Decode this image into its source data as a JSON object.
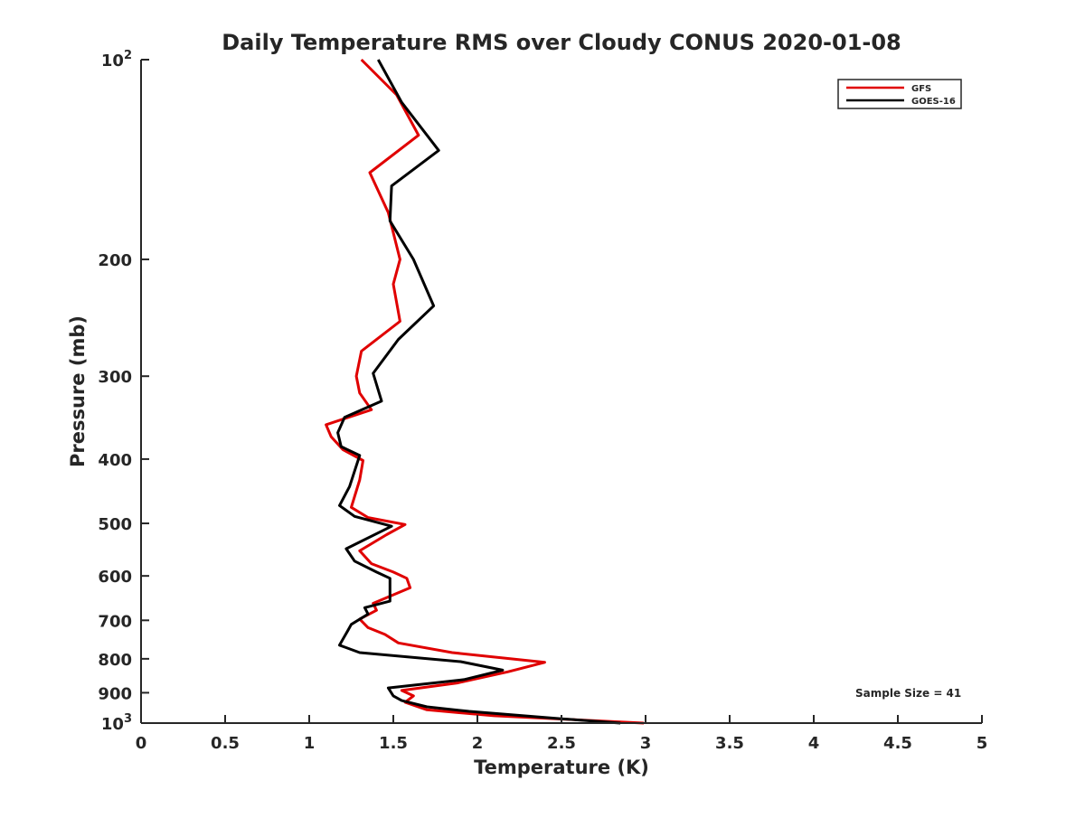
{
  "chart_data": {
    "type": "line",
    "title": "Daily Temperature RMS over Cloudy CONUS 2020-01-08",
    "xlabel": "Temperature (K)",
    "ylabel": "Pressure (mb)",
    "xlim": [
      0,
      5
    ],
    "ylim": [
      100,
      1000
    ],
    "y_scale": "log",
    "y_reversed": true,
    "grid": false,
    "legend_position": "top-right",
    "x_ticks": [
      {
        "value": 0,
        "label": "0"
      },
      {
        "value": 0.5,
        "label": "0.5"
      },
      {
        "value": 1,
        "label": "1"
      },
      {
        "value": 1.5,
        "label": "1.5"
      },
      {
        "value": 2,
        "label": "2"
      },
      {
        "value": 2.5,
        "label": "2.5"
      },
      {
        "value": 3,
        "label": "3"
      },
      {
        "value": 3.5,
        "label": "3.5"
      },
      {
        "value": 4,
        "label": "4"
      },
      {
        "value": 4.5,
        "label": "4.5"
      },
      {
        "value": 5,
        "label": "5"
      }
    ],
    "y_ticks": [
      {
        "value": 100,
        "base": "10",
        "exp": "2"
      },
      {
        "value": 200,
        "base": "200",
        "exp": ""
      },
      {
        "value": 300,
        "base": "300",
        "exp": ""
      },
      {
        "value": 400,
        "base": "400",
        "exp": ""
      },
      {
        "value": 500,
        "base": "500",
        "exp": ""
      },
      {
        "value": 600,
        "base": "600",
        "exp": ""
      },
      {
        "value": 700,
        "base": "700",
        "exp": ""
      },
      {
        "value": 800,
        "base": "800",
        "exp": ""
      },
      {
        "value": 900,
        "base": "900",
        "exp": ""
      },
      {
        "value": 1000,
        "base": "10",
        "exp": "3"
      }
    ],
    "series": [
      {
        "name": "GFS",
        "color": "#e00000",
        "points": [
          [
            1.31,
            100
          ],
          [
            1.52,
            113
          ],
          [
            1.65,
            130
          ],
          [
            1.36,
            148
          ],
          [
            1.47,
            170
          ],
          [
            1.54,
            200
          ],
          [
            1.5,
            218
          ],
          [
            1.54,
            248
          ],
          [
            1.31,
            275
          ],
          [
            1.28,
            300
          ],
          [
            1.3,
            318
          ],
          [
            1.37,
            337
          ],
          [
            1.1,
            355
          ],
          [
            1.13,
            370
          ],
          [
            1.2,
            387
          ],
          [
            1.32,
            402
          ],
          [
            1.3,
            430
          ],
          [
            1.25,
            473
          ],
          [
            1.35,
            490
          ],
          [
            1.57,
            502
          ],
          [
            1.46,
            520
          ],
          [
            1.3,
            550
          ],
          [
            1.37,
            575
          ],
          [
            1.5,
            592
          ],
          [
            1.58,
            605
          ],
          [
            1.6,
            625
          ],
          [
            1.38,
            660
          ],
          [
            1.4,
            676
          ],
          [
            1.3,
            697
          ],
          [
            1.35,
            718
          ],
          [
            1.45,
            735
          ],
          [
            1.53,
            757
          ],
          [
            1.85,
            783
          ],
          [
            2.4,
            810
          ],
          [
            2.18,
            837
          ],
          [
            1.88,
            870
          ],
          [
            1.55,
            893
          ],
          [
            1.62,
            910
          ],
          [
            1.57,
            930
          ],
          [
            1.7,
            955
          ],
          [
            2.1,
            975
          ],
          [
            2.99,
            1000
          ]
        ]
      },
      {
        "name": "GOES-16",
        "color": "#000000",
        "points": [
          [
            1.41,
            100
          ],
          [
            1.55,
            116
          ],
          [
            1.77,
            137
          ],
          [
            1.49,
            155
          ],
          [
            1.48,
            175
          ],
          [
            1.62,
            200
          ],
          [
            1.74,
            235
          ],
          [
            1.53,
            264
          ],
          [
            1.38,
            297
          ],
          [
            1.43,
            327
          ],
          [
            1.21,
            346
          ],
          [
            1.17,
            365
          ],
          [
            1.19,
            383
          ],
          [
            1.3,
            395
          ],
          [
            1.24,
            440
          ],
          [
            1.18,
            470
          ],
          [
            1.27,
            488
          ],
          [
            1.49,
            505
          ],
          [
            1.22,
            546
          ],
          [
            1.27,
            570
          ],
          [
            1.4,
            592
          ],
          [
            1.48,
            605
          ],
          [
            1.48,
            655
          ],
          [
            1.33,
            670
          ],
          [
            1.35,
            685
          ],
          [
            1.25,
            710
          ],
          [
            1.23,
            725
          ],
          [
            1.18,
            763
          ],
          [
            1.3,
            783
          ],
          [
            1.9,
            808
          ],
          [
            2.15,
            832
          ],
          [
            1.92,
            860
          ],
          [
            1.47,
            885
          ],
          [
            1.5,
            910
          ],
          [
            1.55,
            925
          ],
          [
            1.7,
            945
          ],
          [
            1.95,
            960
          ],
          [
            2.5,
            985
          ],
          [
            2.85,
            1000
          ]
        ]
      }
    ],
    "annotation": "Sample Size = 41"
  }
}
